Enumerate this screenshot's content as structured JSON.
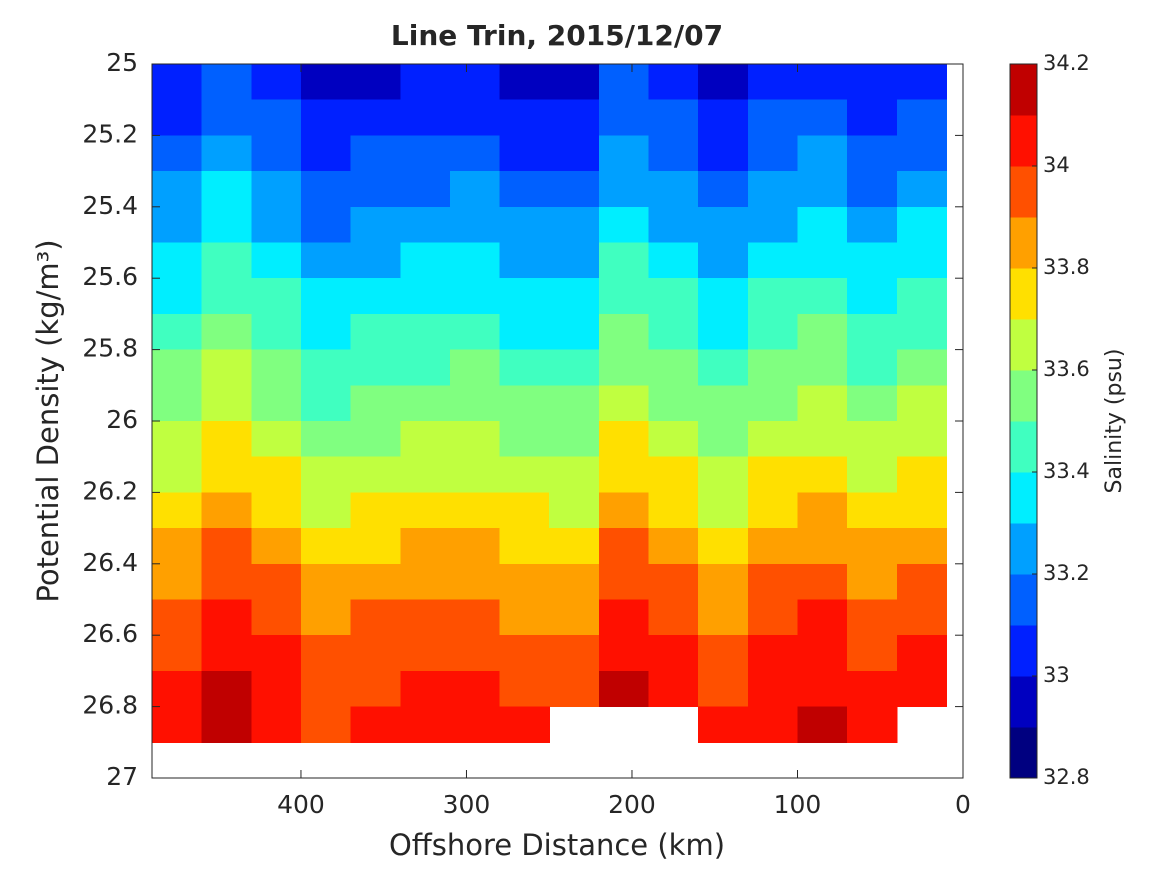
{
  "chart_data": {
    "type": "contourf",
    "title": "Line Trin, 2015/12/07",
    "xlabel": "Offshore Distance (km)",
    "ylabel": "Potential Density (kg/m³)",
    "colorbar_label": "Salinity (psu)",
    "xlim": [
      490,
      0
    ],
    "xticks": [
      400,
      300,
      200,
      100,
      0
    ],
    "ylim": [
      25,
      27
    ],
    "yticks": [
      25,
      25.2,
      25.4,
      25.6,
      25.8,
      26,
      26.2,
      26.4,
      26.6,
      26.8,
      27
    ],
    "y_reversed": true,
    "levels": [
      32.8,
      32.9,
      33,
      33.1,
      33.2,
      33.3,
      33.4,
      33.5,
      33.6,
      33.7,
      33.8,
      33.9,
      34,
      34.1,
      34.2
    ],
    "colors": [
      "#000080",
      "#0000c0",
      "#0020ff",
      "#0060ff",
      "#00a0ff",
      "#00eeff",
      "#40ffc0",
      "#80ff80",
      "#c0ff40",
      "#ffe000",
      "#ffa000",
      "#ff5000",
      "#ff1000",
      "#c00000"
    ],
    "colorbar_ticks": [
      32.8,
      33,
      33.2,
      33.4,
      33.6,
      33.8,
      34,
      34.2
    ],
    "x": [
      475,
      445,
      415,
      385,
      355,
      325,
      295,
      265,
      235,
      205,
      175,
      145,
      115,
      85,
      55,
      25
    ],
    "y": [
      25.05,
      25.15,
      25.25,
      25.35,
      25.45,
      25.55,
      25.65,
      25.75,
      25.85,
      25.95,
      26.05,
      26.15,
      26.25,
      26.35,
      26.45,
      26.55,
      26.65,
      26.75,
      26.85
    ],
    "z": [
      [
        33.02,
        33.12,
        33.04,
        32.94,
        32.98,
        33.0,
        33.02,
        32.97,
        32.96,
        33.1,
        33.04,
        32.96,
        33.04,
        33.08,
        33.0,
        33.06
      ],
      [
        33.08,
        33.18,
        33.1,
        33.0,
        33.04,
        33.06,
        33.08,
        33.03,
        33.02,
        33.16,
        33.1,
        33.02,
        33.1,
        33.14,
        33.06,
        33.12
      ],
      [
        33.14,
        33.24,
        33.16,
        33.06,
        33.1,
        33.12,
        33.14,
        33.09,
        33.08,
        33.22,
        33.16,
        33.08,
        33.16,
        33.2,
        33.12,
        33.18
      ],
      [
        33.2,
        33.3,
        33.22,
        33.12,
        33.16,
        33.18,
        33.2,
        33.15,
        33.14,
        33.28,
        33.22,
        33.14,
        33.22,
        33.26,
        33.18,
        33.24
      ],
      [
        33.26,
        33.36,
        33.28,
        33.18,
        33.22,
        33.24,
        33.26,
        33.21,
        33.2,
        33.34,
        33.28,
        33.2,
        33.28,
        33.32,
        33.24,
        33.3
      ],
      [
        33.32,
        33.42,
        33.34,
        33.24,
        33.28,
        33.3,
        33.32,
        33.27,
        33.26,
        33.4,
        33.34,
        33.26,
        33.34,
        33.38,
        33.3,
        33.36
      ],
      [
        33.38,
        33.48,
        33.4,
        33.3,
        33.34,
        33.36,
        33.38,
        33.33,
        33.32,
        33.46,
        33.4,
        33.32,
        33.4,
        33.44,
        33.36,
        33.42
      ],
      [
        33.44,
        33.54,
        33.46,
        33.36,
        33.4,
        33.42,
        33.44,
        33.39,
        33.38,
        33.52,
        33.46,
        33.38,
        33.46,
        33.5,
        33.42,
        33.48
      ],
      [
        33.5,
        33.6,
        33.52,
        33.42,
        33.46,
        33.48,
        33.5,
        33.45,
        33.44,
        33.58,
        33.52,
        33.44,
        33.52,
        33.56,
        33.48,
        33.54
      ],
      [
        33.56,
        33.66,
        33.58,
        33.48,
        33.52,
        33.54,
        33.56,
        33.51,
        33.5,
        33.64,
        33.58,
        33.5,
        33.58,
        33.62,
        33.54,
        33.6
      ],
      [
        33.62,
        33.72,
        33.64,
        33.54,
        33.58,
        33.6,
        33.62,
        33.57,
        33.56,
        33.7,
        33.64,
        33.56,
        33.64,
        33.68,
        33.6,
        33.66
      ],
      [
        33.68,
        33.78,
        33.7,
        33.6,
        33.64,
        33.66,
        33.68,
        33.63,
        33.62,
        33.76,
        33.7,
        33.62,
        33.7,
        33.74,
        33.66,
        33.72
      ],
      [
        33.75,
        33.85,
        33.77,
        33.67,
        33.71,
        33.73,
        33.75,
        33.7,
        33.69,
        33.83,
        33.77,
        33.69,
        33.77,
        33.81,
        33.73,
        33.79
      ],
      [
        33.82,
        33.92,
        33.84,
        33.74,
        33.78,
        33.8,
        33.82,
        33.77,
        33.76,
        33.9,
        33.84,
        33.76,
        33.84,
        33.88,
        33.8,
        33.86
      ],
      [
        33.88,
        33.98,
        33.9,
        33.8,
        33.84,
        33.86,
        33.88,
        33.83,
        33.82,
        33.96,
        33.9,
        33.82,
        33.9,
        33.94,
        33.86,
        33.92
      ],
      [
        33.94,
        34.04,
        33.96,
        33.86,
        33.9,
        33.92,
        33.94,
        33.89,
        33.88,
        34.02,
        33.96,
        33.88,
        33.96,
        34.0,
        33.92,
        33.98
      ],
      [
        33.99,
        34.09,
        34.01,
        33.91,
        33.95,
        33.97,
        33.99,
        33.94,
        33.93,
        34.07,
        34.01,
        33.93,
        34.01,
        34.05,
        33.97,
        34.03
      ],
      [
        34.03,
        34.13,
        34.05,
        33.95,
        33.99,
        34.01,
        34.03,
        33.98,
        33.97,
        34.11,
        34.05,
        33.97,
        34.05,
        34.09,
        34.01,
        34.07
      ],
      [
        34.06,
        34.16,
        34.08,
        33.98,
        34.02,
        34.04,
        34.06,
        34.01,
        null,
        null,
        null,
        34.0,
        34.08,
        34.12,
        34.04,
        null
      ]
    ]
  }
}
